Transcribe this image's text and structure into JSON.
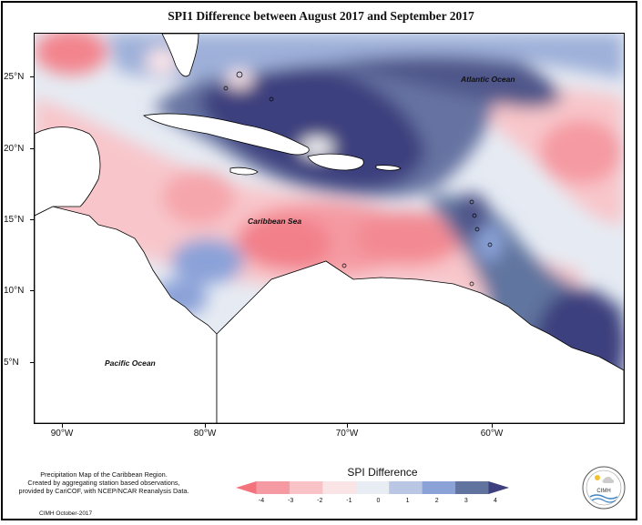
{
  "title": "SPI1 Difference between August 2017 and September 2017",
  "map": {
    "lat_ticks": [
      "25°N",
      "20°N",
      "15°N",
      "10°N",
      "5°N"
    ],
    "lon_ticks": [
      "90°W",
      "80°W",
      "70°W",
      "60°W"
    ],
    "labels": {
      "atlantic": "Atlantic Ocean",
      "caribbean": "Caribbean Sea",
      "pacific": "Pacific Ocean"
    }
  },
  "legend": {
    "title": "SPI Difference",
    "ticks": [
      "-4",
      "-3",
      "-2",
      "-1",
      "0",
      "1",
      "2",
      "3",
      "4"
    ],
    "colors": [
      "#f3727c",
      "#f59aa2",
      "#f8c2c6",
      "#fbe4e6",
      "#e8edf3",
      "#b9c7e4",
      "#8ba2d8",
      "#60749f",
      "#3d3f7e"
    ]
  },
  "footnote": {
    "lines": [
      "Precipitation Map of the Caribbean Region.",
      "Created by aggregating station based observations,",
      "provided by CariCOF, with NCEP/NCAR Reanalysis Data."
    ],
    "credit": "CIMH October-2017"
  },
  "logo": {
    "text": "CIMH"
  }
}
